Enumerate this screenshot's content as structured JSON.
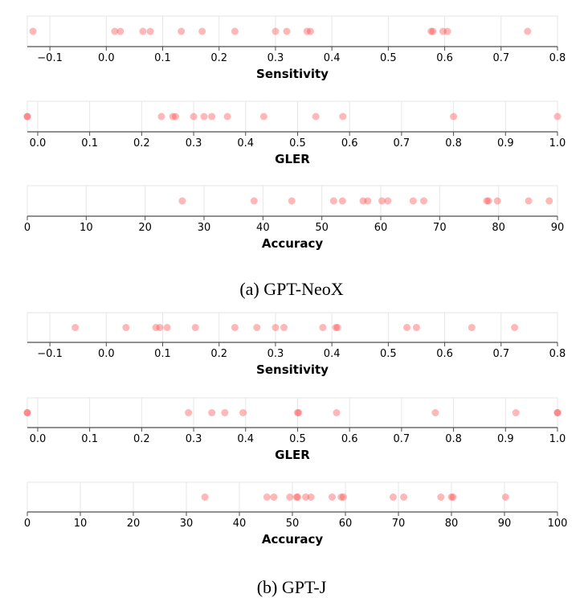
{
  "colors": {
    "point": "#ff4b4b",
    "grid": "#e6e6e6",
    "axis": "#4d4d4d",
    "text": "#000000"
  },
  "chart_data": [
    {
      "type": "scatter",
      "panel": "a",
      "xlabel": "Sensitivity",
      "xlim": [
        -0.14,
        0.8
      ],
      "ticks": [
        -0.1,
        0.0,
        0.1,
        0.2,
        0.3,
        0.4,
        0.5,
        0.6,
        0.7,
        0.8
      ],
      "tick_labels": [
        "−0.1",
        "0.0",
        "0.1",
        "0.2",
        "0.3",
        "0.4",
        "0.5",
        "0.6",
        "0.7",
        "0.8"
      ],
      "x": [
        -0.13,
        0.015,
        0.025,
        0.065,
        0.078,
        0.133,
        0.17,
        0.228,
        0.3,
        0.32,
        0.356,
        0.362,
        0.576,
        0.579,
        0.597,
        0.605,
        0.747
      ]
    },
    {
      "type": "scatter",
      "panel": "a",
      "xlabel": "GLER",
      "xlim": [
        -0.02,
        1.0
      ],
      "ticks": [
        0.0,
        0.1,
        0.2,
        0.3,
        0.4,
        0.5,
        0.6,
        0.7,
        0.8,
        0.9,
        1.0
      ],
      "tick_labels": [
        "0.0",
        "0.1",
        "0.2",
        "0.3",
        "0.4",
        "0.5",
        "0.6",
        "0.7",
        "0.8",
        "0.9",
        "1.0"
      ],
      "x": [
        -0.02,
        -0.02,
        0.238,
        0.26,
        0.265,
        0.3,
        0.32,
        0.335,
        0.365,
        0.435,
        0.535,
        0.587,
        0.8,
        1.0
      ]
    },
    {
      "type": "scatter",
      "panel": "a",
      "xlabel": "Accuracy",
      "xlim": [
        0,
        90
      ],
      "ticks": [
        0,
        10,
        20,
        30,
        40,
        50,
        60,
        70,
        80,
        90
      ],
      "tick_labels": [
        "0",
        "10",
        "20",
        "30",
        "40",
        "50",
        "60",
        "70",
        "80",
        "90"
      ],
      "x": [
        26.3,
        38.5,
        44.9,
        52.0,
        53.5,
        57.0,
        57.8,
        60.2,
        61.2,
        65.5,
        67.3,
        78.0,
        78.3,
        79.8,
        85.1,
        88.6
      ]
    },
    {
      "type": "scatter",
      "panel": "b",
      "xlabel": "Sensitivity",
      "xlim": [
        -0.14,
        0.8
      ],
      "ticks": [
        -0.1,
        0.0,
        0.1,
        0.2,
        0.3,
        0.4,
        0.5,
        0.6,
        0.7,
        0.8
      ],
      "tick_labels": [
        "−0.1",
        "0.0",
        "0.1",
        "0.2",
        "0.3",
        "0.4",
        "0.5",
        "0.6",
        "0.7",
        "0.8"
      ],
      "x": [
        -0.055,
        0.035,
        0.088,
        0.095,
        0.108,
        0.158,
        0.228,
        0.267,
        0.3,
        0.315,
        0.384,
        0.407,
        0.41,
        0.533,
        0.55,
        0.648,
        0.724
      ]
    },
    {
      "type": "scatter",
      "panel": "b",
      "xlabel": "GLER",
      "xlim": [
        -0.02,
        1.0
      ],
      "ticks": [
        0.0,
        0.1,
        0.2,
        0.3,
        0.4,
        0.5,
        0.6,
        0.7,
        0.8,
        0.9,
        1.0
      ],
      "tick_labels": [
        "0.0",
        "0.1",
        "0.2",
        "0.3",
        "0.4",
        "0.5",
        "0.6",
        "0.7",
        "0.8",
        "0.9",
        "1.0"
      ],
      "x": [
        -0.02,
        -0.02,
        0.29,
        0.335,
        0.36,
        0.395,
        0.5,
        0.502,
        0.575,
        0.765,
        0.92,
        1.0,
        1.0
      ]
    },
    {
      "type": "scatter",
      "panel": "b",
      "xlabel": "Accuracy",
      "xlim": [
        0,
        100
      ],
      "ticks": [
        0,
        10,
        20,
        30,
        40,
        50,
        60,
        70,
        80,
        90,
        100
      ],
      "tick_labels": [
        "0",
        "10",
        "20",
        "30",
        "40",
        "50",
        "60",
        "70",
        "80",
        "90",
        "100"
      ],
      "x": [
        33.5,
        45.2,
        46.5,
        49.5,
        50.8,
        51.0,
        52.5,
        53.5,
        57.5,
        59.2,
        59.6,
        69.0,
        71.0,
        78.0,
        80.0,
        80.3,
        90.2
      ]
    }
  ],
  "captions": {
    "a": "(a) GPT-NeoX",
    "b": "(b) GPT-J"
  }
}
